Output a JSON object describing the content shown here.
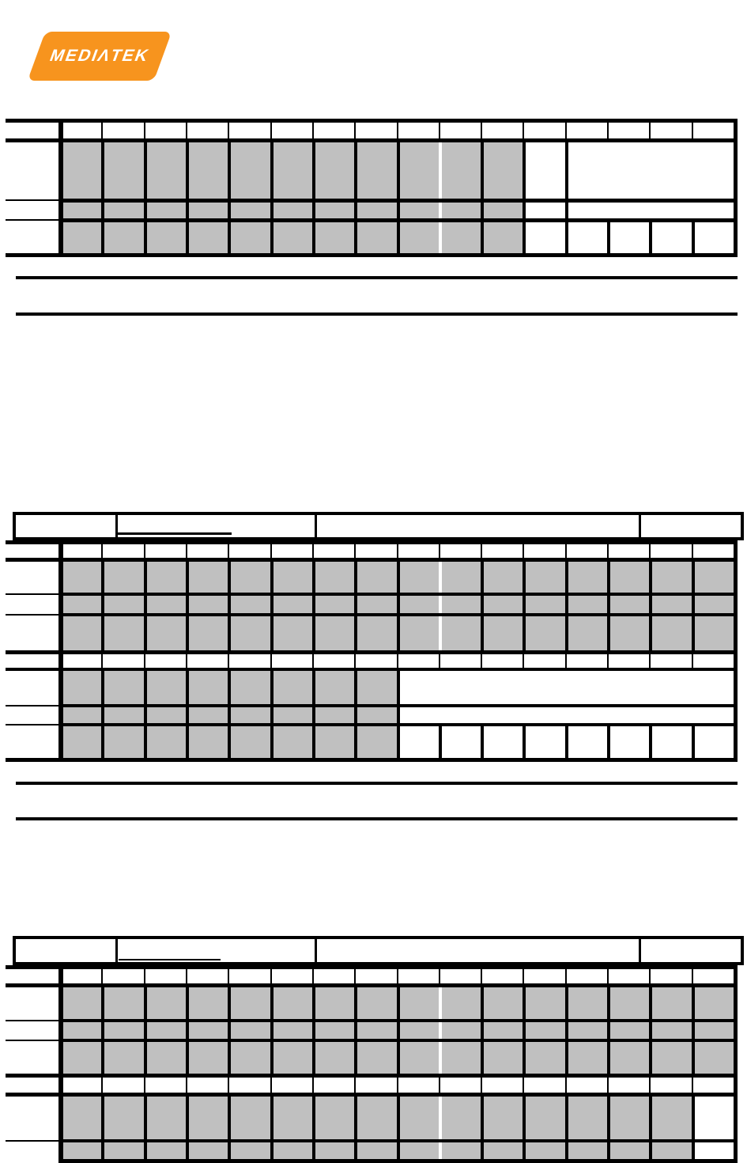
{
  "logo": {
    "text": "MEDIΛTEK",
    "bg_color": "#F7941E",
    "text_color": "#FFFFFF"
  },
  "colors": {
    "shaded_cell": "#C0C0C0",
    "grid_line": "#000000",
    "page_bg": "#FFFFFF"
  },
  "tables": {
    "bit_columns": 16,
    "rows": {
      "t1-header": {
        "bw": 2,
        "cells": "w16"
      },
      "t1-name": {
        "bw": 4,
        "cells": "g11 w1 W4"
      },
      "t1-type": {
        "bw": 4,
        "cells": "g11 w1 W4"
      },
      "t1-reset": {
        "bw": 4,
        "cells": "g11 w5"
      },
      "t2-header1": {
        "bw": 2,
        "cells": "w16"
      },
      "t2-name1": {
        "bw": 4,
        "cells": "g16"
      },
      "t2-type1": {
        "bw": 4,
        "cells": "g16"
      },
      "t2-reset1": {
        "bw": 4,
        "cells": "g16"
      },
      "t2-header2": {
        "bw": 2,
        "cells": "w16"
      },
      "t2-name2": {
        "bw": 4,
        "cells": "g8 W8"
      },
      "t2-type2": {
        "bw": 4,
        "cells": "g8 W8"
      },
      "t2-reset2": {
        "bw": 4,
        "cells": "g8 w8"
      },
      "t3-header1": {
        "bw": 2,
        "cells": "w16"
      },
      "t3-name1": {
        "bw": 4,
        "cells": "g16"
      },
      "t3-type1": {
        "bw": 4,
        "cells": "g16"
      },
      "t3-reset1": {
        "bw": 4,
        "cells": "g16"
      },
      "t3-header2": {
        "bw": 2,
        "cells": "w16"
      },
      "t3-name2": {
        "bw": 4,
        "cells": "g15 w1"
      },
      "t3-type2": {
        "bw": 4,
        "cells": "g15 w1"
      }
    }
  }
}
